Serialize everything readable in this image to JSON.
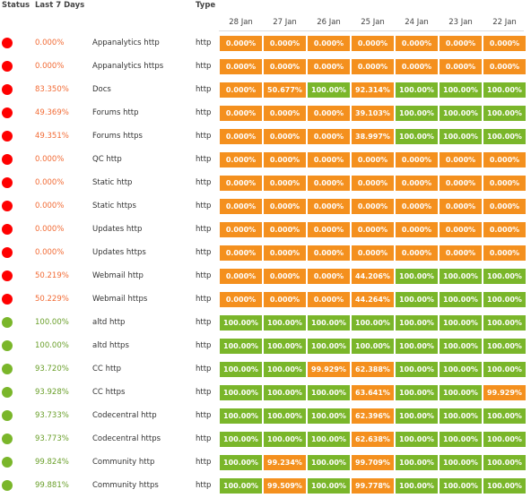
{
  "header": {
    "status": "Status",
    "last7": "Last 7 Days",
    "type": "Type",
    "dates": [
      "28 Jan",
      "27 Jan",
      "26 Jan",
      "25 Jan",
      "24 Jan",
      "23 Jan",
      "22 Jan"
    ]
  },
  "colors": {
    "down": "#ff0000",
    "up": "#7ab62a",
    "cell_green": "#7ab62a",
    "cell_orange": "#f4901e",
    "pct_down": "#f26b35",
    "pct_up": "#6a9f2a"
  },
  "rows": [
    {
      "status": "down",
      "uptime": "0.000%",
      "name": "Appanalytics http",
      "type": "http",
      "days": [
        "0.000%",
        "0.000%",
        "0.000%",
        "0.000%",
        "0.000%",
        "0.000%",
        "0.000%"
      ]
    },
    {
      "status": "down",
      "uptime": "0.000%",
      "name": "Appanalytics https",
      "type": "http",
      "days": [
        "0.000%",
        "0.000%",
        "0.000%",
        "0.000%",
        "0.000%",
        "0.000%",
        "0.000%"
      ]
    },
    {
      "status": "down",
      "uptime": "83.350%",
      "name": "Docs",
      "type": "http",
      "days": [
        "0.000%",
        "50.677%",
        "100.00%",
        "92.314%",
        "100.00%",
        "100.00%",
        "100.00%"
      ]
    },
    {
      "status": "down",
      "uptime": "49.369%",
      "name": "Forums http",
      "type": "http",
      "days": [
        "0.000%",
        "0.000%",
        "0.000%",
        "39.103%",
        "100.00%",
        "100.00%",
        "100.00%"
      ]
    },
    {
      "status": "down",
      "uptime": "49.351%",
      "name": "Forums https",
      "type": "http",
      "days": [
        "0.000%",
        "0.000%",
        "0.000%",
        "38.997%",
        "100.00%",
        "100.00%",
        "100.00%"
      ]
    },
    {
      "status": "down",
      "uptime": "0.000%",
      "name": "QC http",
      "type": "http",
      "days": [
        "0.000%",
        "0.000%",
        "0.000%",
        "0.000%",
        "0.000%",
        "0.000%",
        "0.000%"
      ]
    },
    {
      "status": "down",
      "uptime": "0.000%",
      "name": "Static http",
      "type": "http",
      "days": [
        "0.000%",
        "0.000%",
        "0.000%",
        "0.000%",
        "0.000%",
        "0.000%",
        "0.000%"
      ]
    },
    {
      "status": "down",
      "uptime": "0.000%",
      "name": "Static https",
      "type": "http",
      "days": [
        "0.000%",
        "0.000%",
        "0.000%",
        "0.000%",
        "0.000%",
        "0.000%",
        "0.000%"
      ]
    },
    {
      "status": "down",
      "uptime": "0.000%",
      "name": "Updates http",
      "type": "http",
      "days": [
        "0.000%",
        "0.000%",
        "0.000%",
        "0.000%",
        "0.000%",
        "0.000%",
        "0.000%"
      ]
    },
    {
      "status": "down",
      "uptime": "0.000%",
      "name": "Updates https",
      "type": "http",
      "days": [
        "0.000%",
        "0.000%",
        "0.000%",
        "0.000%",
        "0.000%",
        "0.000%",
        "0.000%"
      ]
    },
    {
      "status": "down",
      "uptime": "50.219%",
      "name": "Webmail http",
      "type": "http",
      "days": [
        "0.000%",
        "0.000%",
        "0.000%",
        "44.206%",
        "100.00%",
        "100.00%",
        "100.00%"
      ]
    },
    {
      "status": "down",
      "uptime": "50.229%",
      "name": "Webmail https",
      "type": "http",
      "days": [
        "0.000%",
        "0.000%",
        "0.000%",
        "44.264%",
        "100.00%",
        "100.00%",
        "100.00%"
      ]
    },
    {
      "status": "up",
      "uptime": "100.00%",
      "name": "altd http",
      "type": "http",
      "days": [
        "100.00%",
        "100.00%",
        "100.00%",
        "100.00%",
        "100.00%",
        "100.00%",
        "100.00%"
      ]
    },
    {
      "status": "up",
      "uptime": "100.00%",
      "name": "altd https",
      "type": "http",
      "days": [
        "100.00%",
        "100.00%",
        "100.00%",
        "100.00%",
        "100.00%",
        "100.00%",
        "100.00%"
      ]
    },
    {
      "status": "up",
      "uptime": "93.720%",
      "name": "CC http",
      "type": "http",
      "days": [
        "100.00%",
        "100.00%",
        "99.929%",
        "62.388%",
        "100.00%",
        "100.00%",
        "100.00%"
      ]
    },
    {
      "status": "up",
      "uptime": "93.928%",
      "name": "CC https",
      "type": "http",
      "days": [
        "100.00%",
        "100.00%",
        "100.00%",
        "63.641%",
        "100.00%",
        "100.00%",
        "99.929%"
      ]
    },
    {
      "status": "up",
      "uptime": "93.733%",
      "name": "Codecentral http",
      "type": "http",
      "days": [
        "100.00%",
        "100.00%",
        "100.00%",
        "62.396%",
        "100.00%",
        "100.00%",
        "100.00%"
      ]
    },
    {
      "status": "up",
      "uptime": "93.773%",
      "name": "Codecentral https",
      "type": "http",
      "days": [
        "100.00%",
        "100.00%",
        "100.00%",
        "62.638%",
        "100.00%",
        "100.00%",
        "100.00%"
      ]
    },
    {
      "status": "up",
      "uptime": "99.824%",
      "name": "Community http",
      "type": "http",
      "days": [
        "100.00%",
        "99.234%",
        "100.00%",
        "99.709%",
        "100.00%",
        "100.00%",
        "100.00%"
      ]
    },
    {
      "status": "up",
      "uptime": "99.881%",
      "name": "Community https",
      "type": "http",
      "days": [
        "100.00%",
        "99.509%",
        "100.00%",
        "99.778%",
        "100.00%",
        "100.00%",
        "100.00%"
      ]
    }
  ]
}
